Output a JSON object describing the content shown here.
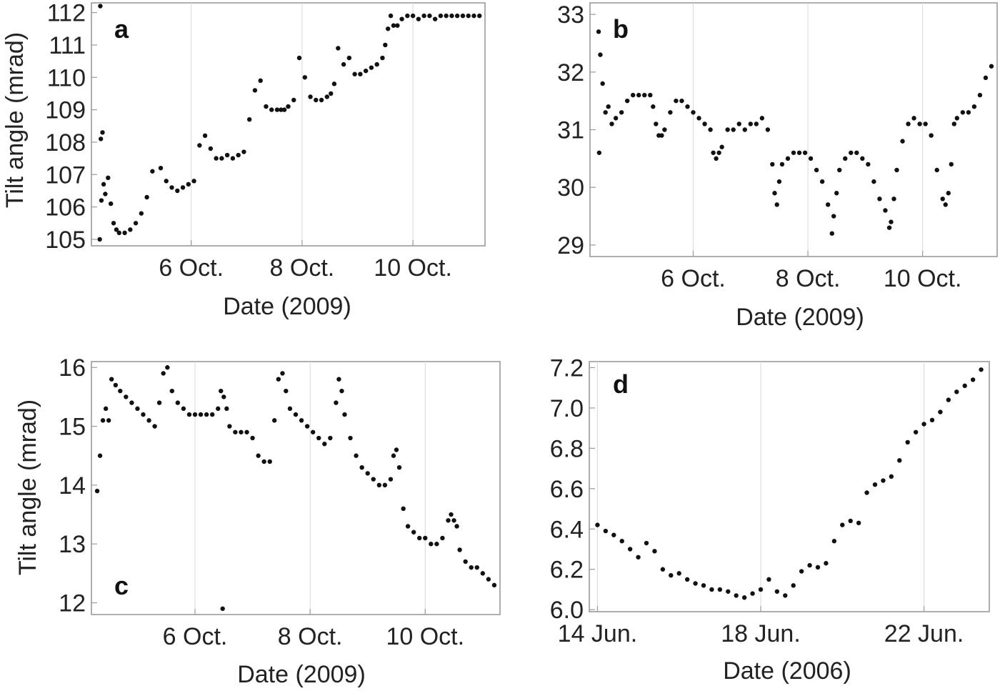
{
  "chart_data": [
    {
      "id": "a",
      "type": "scatter",
      "panel_label": "a",
      "ylabel": "Tilt angle (mrad)",
      "xlabel": "Date (2009)",
      "x_unit": "days (day-of-month, October 2009)",
      "xlim": [
        4.2,
        11.3
      ],
      "ylim": [
        104.8,
        112.3
      ],
      "xticks": [
        {
          "value": 6,
          "label": "6 Oct."
        },
        {
          "value": 8,
          "label": "8 Oct."
        },
        {
          "value": 10,
          "label": "10 Oct."
        }
      ],
      "yticks": [
        {
          "value": 105,
          "label": "105"
        },
        {
          "value": 106,
          "label": "106"
        },
        {
          "value": 107,
          "label": "107"
        },
        {
          "value": 108,
          "label": "108"
        },
        {
          "value": 109,
          "label": "109"
        },
        {
          "value": 110,
          "label": "110"
        },
        {
          "value": 111,
          "label": "111"
        },
        {
          "value": 112,
          "label": "112"
        }
      ],
      "grid": "vertical at x ticks",
      "series": [
        {
          "x": [
            4.35,
            4.38,
            4.42,
            4.45,
            4.5,
            4.55,
            4.6,
            4.65,
            4.7,
            4.8,
            4.9,
            5.0,
            5.1,
            5.2,
            5.3,
            5.45,
            5.55,
            5.65,
            5.75,
            5.85,
            5.95,
            6.05,
            6.15,
            6.25,
            6.35,
            6.45,
            6.55,
            6.65,
            6.75,
            6.85,
            6.95,
            7.05,
            7.15,
            7.25,
            7.35,
            7.45,
            7.55,
            7.62,
            7.68,
            7.75,
            7.85,
            7.95,
            8.05,
            8.15,
            8.25,
            8.35,
            8.45,
            8.52,
            8.58,
            8.65,
            8.75,
            8.85,
            8.95,
            9.05,
            9.15,
            9.25,
            9.35,
            9.45,
            9.5,
            9.55,
            9.6,
            9.65,
            9.72,
            9.8,
            9.9,
            10.0,
            10.1,
            10.2,
            10.3,
            10.4,
            10.5,
            10.6,
            10.7,
            10.8,
            10.9,
            11.0,
            11.1,
            11.2,
            4.4,
            4.37,
            4.36
          ],
          "y": [
            105.0,
            106.2,
            106.7,
            106.4,
            106.9,
            106.1,
            105.5,
            105.3,
            105.2,
            105.2,
            105.3,
            105.5,
            105.8,
            106.3,
            107.1,
            107.2,
            106.8,
            106.6,
            106.5,
            106.6,
            106.7,
            106.8,
            107.9,
            108.2,
            107.8,
            107.5,
            107.5,
            107.6,
            107.5,
            107.6,
            107.7,
            108.7,
            109.6,
            109.9,
            109.1,
            109.0,
            109.0,
            109.0,
            109.0,
            109.1,
            109.3,
            110.6,
            110.0,
            109.4,
            109.3,
            109.3,
            109.4,
            109.5,
            109.8,
            110.9,
            110.4,
            110.6,
            110.1,
            110.1,
            110.2,
            110.3,
            110.4,
            110.6,
            111.0,
            111.5,
            111.9,
            111.6,
            111.6,
            111.8,
            111.9,
            111.9,
            111.8,
            111.9,
            111.9,
            111.8,
            111.9,
            111.9,
            111.9,
            111.9,
            111.9,
            111.9,
            111.9,
            111.9,
            108.3,
            108.1,
            112.2
          ]
        }
      ]
    },
    {
      "id": "b",
      "type": "scatter",
      "panel_label": "b",
      "ylabel": "",
      "xlabel": "Date (2009)",
      "x_unit": "days (day-of-month, October 2009)",
      "xlim": [
        4.2,
        11.3
      ],
      "ylim": [
        28.8,
        33.2
      ],
      "xticks": [
        {
          "value": 6,
          "label": "6 Oct."
        },
        {
          "value": 8,
          "label": "8 Oct."
        },
        {
          "value": 10,
          "label": "10 Oct."
        }
      ],
      "yticks": [
        {
          "value": 29,
          "label": "29"
        },
        {
          "value": 30,
          "label": "30"
        },
        {
          "value": 31,
          "label": "31"
        },
        {
          "value": 32,
          "label": "32"
        },
        {
          "value": 33,
          "label": "33"
        }
      ],
      "grid": "vertical at x ticks",
      "series": [
        {
          "x": [
            4.35,
            4.38,
            4.42,
            4.47,
            4.52,
            4.58,
            4.65,
            4.75,
            4.85,
            4.95,
            5.05,
            5.15,
            5.25,
            5.3,
            5.35,
            5.4,
            5.45,
            5.5,
            5.6,
            5.7,
            5.8,
            5.9,
            6.0,
            6.1,
            6.2,
            6.3,
            6.35,
            6.4,
            6.45,
            6.5,
            6.6,
            6.7,
            6.8,
            6.9,
            7.0,
            7.1,
            7.2,
            7.3,
            7.38,
            7.42,
            7.46,
            7.5,
            7.55,
            7.65,
            7.75,
            7.85,
            7.95,
            8.05,
            8.15,
            8.25,
            8.35,
            8.42,
            8.45,
            8.5,
            8.55,
            8.65,
            8.75,
            8.85,
            8.95,
            9.05,
            9.15,
            9.25,
            9.35,
            9.42,
            9.45,
            9.5,
            9.55,
            9.65,
            9.75,
            9.85,
            9.95,
            10.05,
            10.15,
            10.25,
            10.35,
            10.4,
            10.45,
            10.5,
            10.55,
            10.6,
            10.7,
            10.8,
            10.9,
            11.0,
            11.1,
            11.2,
            4.36
          ],
          "y": [
            32.7,
            32.3,
            31.8,
            31.3,
            31.4,
            31.1,
            31.2,
            31.3,
            31.5,
            31.6,
            31.6,
            31.6,
            31.6,
            31.4,
            31.1,
            30.9,
            30.9,
            31.0,
            31.3,
            31.5,
            31.5,
            31.4,
            31.3,
            31.2,
            31.1,
            31.0,
            30.6,
            30.5,
            30.6,
            30.7,
            31.0,
            31.0,
            31.1,
            31.0,
            31.1,
            31.1,
            31.2,
            31.0,
            30.4,
            29.9,
            29.7,
            30.1,
            30.4,
            30.5,
            30.6,
            30.6,
            30.6,
            30.5,
            30.3,
            30.1,
            29.7,
            29.2,
            29.5,
            29.9,
            30.3,
            30.5,
            30.6,
            30.6,
            30.5,
            30.4,
            30.1,
            29.8,
            29.6,
            29.3,
            29.4,
            29.8,
            30.3,
            30.8,
            31.1,
            31.2,
            31.1,
            31.1,
            30.9,
            30.3,
            29.8,
            29.7,
            29.9,
            30.4,
            31.1,
            31.2,
            31.3,
            31.3,
            31.4,
            31.6,
            31.9,
            32.1,
            30.6
          ]
        }
      ]
    },
    {
      "id": "c",
      "type": "scatter",
      "panel_label": "c",
      "ylabel": "Tilt angle (mrad)",
      "xlabel": "Date (2009)",
      "x_unit": "days (day-of-month, October 2009)",
      "xlim": [
        4.2,
        11.3
      ],
      "ylim": [
        11.8,
        16.1
      ],
      "xticks": [
        {
          "value": 6,
          "label": "6 Oct."
        },
        {
          "value": 8,
          "label": "8 Oct."
        },
        {
          "value": 10,
          "label": "10 Oct."
        }
      ],
      "yticks": [
        {
          "value": 12,
          "label": "12"
        },
        {
          "value": 13,
          "label": "13"
        },
        {
          "value": 14,
          "label": "14"
        },
        {
          "value": 15,
          "label": "15"
        },
        {
          "value": 16,
          "label": "16"
        }
      ],
      "grid": "vertical at x ticks",
      "series": [
        {
          "x": [
            4.3,
            4.35,
            4.4,
            4.45,
            4.5,
            4.55,
            4.62,
            4.7,
            4.8,
            4.9,
            5.0,
            5.1,
            5.2,
            5.3,
            5.38,
            5.45,
            5.52,
            5.6,
            5.7,
            5.8,
            5.9,
            6.0,
            6.1,
            6.2,
            6.3,
            6.4,
            6.45,
            6.5,
            6.55,
            6.6,
            6.7,
            6.8,
            6.9,
            7.0,
            7.1,
            7.2,
            7.3,
            7.38,
            7.45,
            7.52,
            7.58,
            7.65,
            7.75,
            7.85,
            7.95,
            8.05,
            8.15,
            8.25,
            8.35,
            8.45,
            8.5,
            8.55,
            8.6,
            8.7,
            8.8,
            8.9,
            9.0,
            9.1,
            9.2,
            9.3,
            9.4,
            9.45,
            9.5,
            9.55,
            9.62,
            9.7,
            9.8,
            9.9,
            10.0,
            10.1,
            10.2,
            10.3,
            10.4,
            10.45,
            10.5,
            10.55,
            10.6,
            10.7,
            10.8,
            10.9,
            11.0,
            11.1,
            11.2,
            6.48
          ],
          "y": [
            13.9,
            14.5,
            15.1,
            15.3,
            15.1,
            15.8,
            15.7,
            15.6,
            15.5,
            15.4,
            15.3,
            15.2,
            15.1,
            15.0,
            15.4,
            15.9,
            16.0,
            15.6,
            15.4,
            15.3,
            15.2,
            15.2,
            15.2,
            15.2,
            15.2,
            15.3,
            15.6,
            15.5,
            15.3,
            15.0,
            14.9,
            14.9,
            14.9,
            14.8,
            14.5,
            14.4,
            14.4,
            15.1,
            15.8,
            15.9,
            15.6,
            15.3,
            15.2,
            15.1,
            15.0,
            14.9,
            14.8,
            14.7,
            14.8,
            15.4,
            15.8,
            15.6,
            15.2,
            14.8,
            14.5,
            14.3,
            14.2,
            14.1,
            14.0,
            14.0,
            14.1,
            14.5,
            14.6,
            14.3,
            13.6,
            13.3,
            13.2,
            13.1,
            13.1,
            13.0,
            13.0,
            13.1,
            13.4,
            13.5,
            13.4,
            13.3,
            12.9,
            12.7,
            12.6,
            12.6,
            12.5,
            12.4,
            12.3,
            11.9
          ]
        }
      ]
    },
    {
      "id": "d",
      "type": "scatter",
      "panel_label": "d",
      "ylabel": "",
      "xlabel": "Date (2006)",
      "x_unit": "days (day-of-month, June 2006)",
      "xlim": [
        13.8,
        23.6
      ],
      "ylim": [
        5.99,
        7.23
      ],
      "xticks": [
        {
          "value": 14,
          "label": "14 Jun."
        },
        {
          "value": 18,
          "label": "18 Jun."
        },
        {
          "value": 22,
          "label": "22 Jun."
        }
      ],
      "yticks": [
        {
          "value": 6.0,
          "label": "6.0"
        },
        {
          "value": 6.2,
          "label": "6.2"
        },
        {
          "value": 6.4,
          "label": "6.4"
        },
        {
          "value": 6.6,
          "label": "6.6"
        },
        {
          "value": 6.8,
          "label": "6.8"
        },
        {
          "value": 7.0,
          "label": "7.0"
        },
        {
          "value": 7.2,
          "label": "7.2"
        }
      ],
      "grid": "vertical at x ticks",
      "series": [
        {
          "x": [
            14.0,
            14.2,
            14.4,
            14.6,
            14.8,
            15.0,
            15.2,
            15.4,
            15.6,
            15.8,
            16.0,
            16.2,
            16.4,
            16.6,
            16.8,
            17.0,
            17.2,
            17.4,
            17.6,
            17.8,
            18.0,
            18.2,
            18.4,
            18.6,
            18.8,
            19.0,
            19.2,
            19.4,
            19.6,
            19.8,
            20.0,
            20.2,
            20.4,
            20.6,
            20.8,
            21.0,
            21.2,
            21.4,
            21.6,
            21.8,
            22.0,
            22.2,
            22.4,
            22.6,
            22.8,
            23.0,
            23.2,
            23.4
          ],
          "y": [
            6.42,
            6.39,
            6.37,
            6.34,
            6.3,
            6.26,
            6.33,
            6.29,
            6.2,
            6.17,
            6.18,
            6.15,
            6.13,
            6.12,
            6.1,
            6.1,
            6.09,
            6.07,
            6.06,
            6.08,
            6.1,
            6.15,
            6.09,
            6.07,
            6.12,
            6.19,
            6.22,
            6.21,
            6.23,
            6.34,
            6.42,
            6.44,
            6.43,
            6.58,
            6.62,
            6.64,
            6.66,
            6.74,
            6.83,
            6.88,
            6.92,
            6.94,
            6.98,
            7.04,
            7.08,
            7.11,
            7.14,
            7.19
          ]
        }
      ]
    }
  ]
}
